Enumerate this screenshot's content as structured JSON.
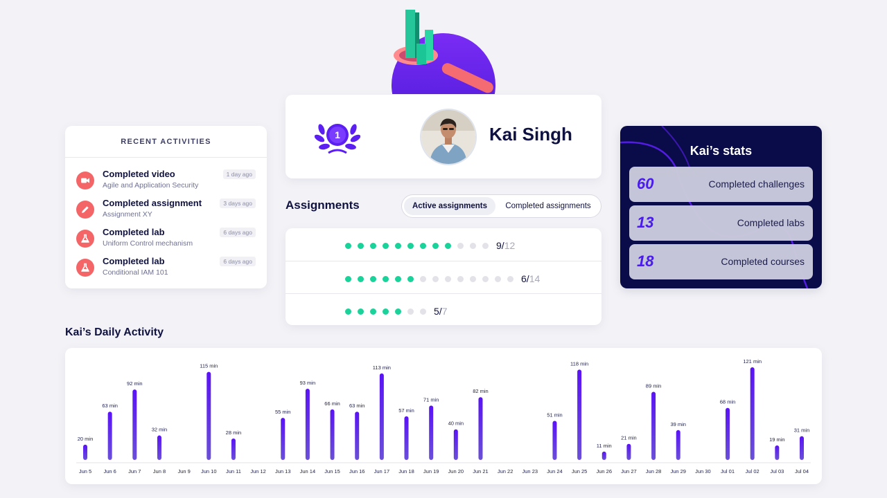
{
  "recent": {
    "title": "RECENT ACTIVITIES",
    "items": [
      {
        "title": "Completed video",
        "subtitle": "Agile and Application Security",
        "time": "1 day ago",
        "icon": "video-camera-icon"
      },
      {
        "title": "Completed assignment",
        "subtitle": "Assignment XY",
        "time": "3 days ago",
        "icon": "pencil-icon"
      },
      {
        "title": "Completed lab",
        "subtitle": "Uniform Control mechanism",
        "time": "6 days ago",
        "icon": "flask-icon"
      },
      {
        "title": "Completed lab",
        "subtitle": "Conditional IAM 101",
        "time": "6 days ago",
        "icon": "flask-icon"
      }
    ]
  },
  "profile": {
    "rank": "1",
    "name": "Kai Singh"
  },
  "assignments": {
    "heading": "Assignments",
    "tab_active": "Active assignments",
    "tab_completed": "Completed assignments",
    "rows": [
      {
        "done": "9",
        "total": "12"
      },
      {
        "done": "6",
        "total": "14"
      },
      {
        "done": "5",
        "total": "7"
      }
    ]
  },
  "stats": {
    "title": "Kai’s stats",
    "items": [
      {
        "value": "60",
        "label": "Completed challenges"
      },
      {
        "value": "13",
        "label": "Completed labs"
      },
      {
        "value": "18",
        "label": "Completed courses"
      }
    ]
  },
  "colors": {
    "accent": "#5b1ff2",
    "progress": "#1bd39a",
    "activity_icon": "#f36567",
    "stats_bg": "#0a0c4a"
  },
  "daily": {
    "heading": "Kai’s Daily Activity"
  },
  "chart_data": {
    "type": "bar",
    "title": "Kai’s Daily Activity",
    "categories": [
      "Jun 5",
      "Jun 6",
      "Jun 7",
      "Jun 8",
      "Jun 9",
      "Jun 10",
      "Jun 11",
      "Jun 12",
      "Jun 13",
      "Jun 14",
      "Jun 15",
      "Jun 16",
      "Jun 17",
      "Jun 18",
      "Jun 19",
      "Jun 20",
      "Jun 21",
      "Jun 22",
      "Jun 23",
      "Jun 24",
      "Jun 25",
      "Jun 26",
      "Jun 27",
      "Jun 28",
      "Jun 29",
      "Jun 30",
      "Jul 01",
      "Jul 02",
      "Jul 03",
      "Jul 04"
    ],
    "values": [
      20,
      63,
      92,
      32,
      null,
      115,
      28,
      null,
      55,
      93,
      66,
      63,
      113,
      57,
      71,
      40,
      82,
      null,
      null,
      51,
      118,
      11,
      21,
      89,
      39,
      null,
      68,
      121,
      19,
      31
    ],
    "value_suffix": " min",
    "ylim": [
      0,
      121
    ],
    "grid": false,
    "legend": "none"
  }
}
